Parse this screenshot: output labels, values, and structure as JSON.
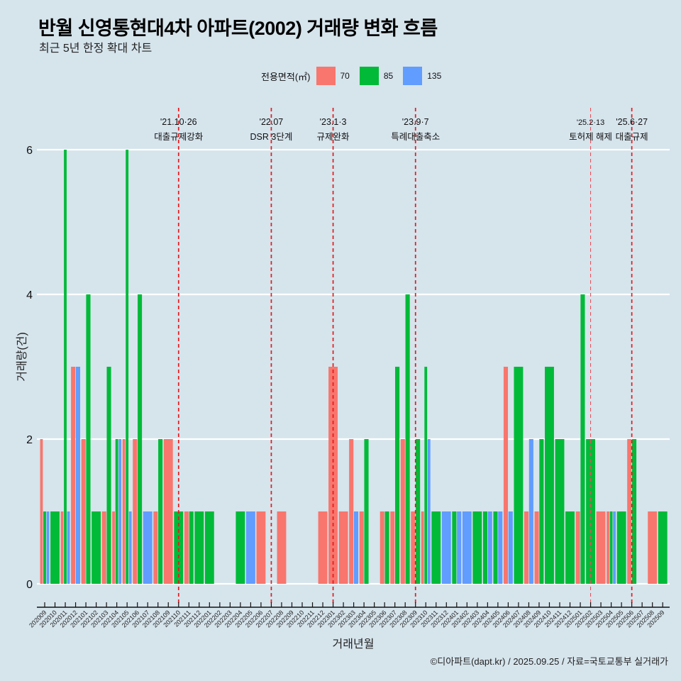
{
  "header": {
    "title": "반월 신영통현대4차 아파트(2002) 거래량 변화 흐름",
    "subtitle": "최근 5년 한정 확대 차트"
  },
  "legend": {
    "title": "전용면적(㎡)",
    "items": [
      {
        "label": "70",
        "color": "#f8766d"
      },
      {
        "label": "85",
        "color": "#00ba38"
      },
      {
        "label": "135",
        "color": "#619cff"
      }
    ]
  },
  "footer": {
    "credit": "©디아파트(dapt.kr) / 2025.09.25 / 자료=국토교통부 실거래가"
  },
  "chart_data": {
    "type": "bar",
    "title": "반월 신영통현대4차 아파트(2002) 거래량 변화 흐름",
    "subtitle": "최근 5년 한정 확대 차트",
    "xlabel": "거래년월",
    "ylabel": "거래량(건)",
    "ylim": [
      0,
      6
    ],
    "yticks": [
      0,
      2,
      4,
      6
    ],
    "grid": true,
    "legend_position": "top",
    "categories": [
      "202009",
      "202010",
      "202011",
      "202012",
      "202101",
      "202102",
      "202103",
      "202104",
      "202105",
      "202106",
      "202107",
      "202108",
      "202109",
      "202110",
      "202111",
      "202112",
      "202201",
      "202202",
      "202203",
      "202204",
      "202205",
      "202206",
      "202207",
      "202208",
      "202209",
      "202210",
      "202211",
      "202212",
      "202301",
      "202302",
      "202303",
      "202304",
      "202305",
      "202306",
      "202307",
      "202308",
      "202309",
      "202310",
      "202311",
      "202312",
      "202401",
      "202402",
      "202403",
      "202404",
      "202405",
      "202406",
      "202407",
      "202408",
      "202409",
      "202410",
      "202411",
      "202412",
      "202501",
      "202502",
      "202503",
      "202504",
      "202505",
      "202506",
      "202507",
      "202508",
      "202509"
    ],
    "series": [
      {
        "name": "70",
        "color": "#f8766d",
        "values": [
          2,
          0,
          1,
          3,
          2,
          0,
          1,
          1,
          2,
          2,
          0,
          1,
          2,
          0,
          1,
          0,
          0,
          0,
          0,
          0,
          0,
          1,
          0,
          1,
          0,
          0,
          0,
          1,
          3,
          1,
          2,
          1,
          0,
          1,
          1,
          2,
          1,
          1,
          0,
          0,
          0,
          0,
          0,
          0,
          0,
          3,
          0,
          1,
          1,
          0,
          0,
          0,
          1,
          0,
          1,
          1,
          0,
          2,
          0,
          1,
          0
        ]
      },
      {
        "name": "85",
        "color": "#00ba38",
        "values": [
          1,
          1,
          6,
          0,
          4,
          1,
          3,
          2,
          6,
          4,
          0,
          2,
          0,
          1,
          1,
          1,
          1,
          0,
          0,
          1,
          0,
          0,
          0,
          0,
          0,
          0,
          0,
          0,
          0,
          0,
          0,
          2,
          0,
          1,
          3,
          4,
          2,
          3,
          1,
          0,
          1,
          0,
          1,
          1,
          1,
          0,
          3,
          0,
          2,
          3,
          2,
          1,
          4,
          2,
          0,
          1,
          1,
          2,
          0,
          0,
          1
        ]
      },
      {
        "name": "135",
        "color": "#619cff",
        "values": [
          1,
          0,
          1,
          3,
          0,
          0,
          0,
          2,
          1,
          0,
          1,
          0,
          0,
          0,
          0,
          0,
          0,
          0,
          0,
          0,
          1,
          0,
          0,
          0,
          0,
          0,
          0,
          0,
          0,
          0,
          1,
          0,
          0,
          0,
          0,
          0,
          0,
          2,
          0,
          1,
          1,
          1,
          0,
          1,
          1,
          1,
          0,
          2,
          0,
          0,
          0,
          0,
          0,
          0,
          0,
          1,
          0,
          0,
          0,
          0,
          0
        ]
      }
    ],
    "annotations": [
      {
        "month": "202110",
        "date": "'21.10·26",
        "label": "대출규제강화",
        "style": "strong"
      },
      {
        "month": "202207",
        "date": "'22.07",
        "label": "DSR 3단계",
        "style": "strong"
      },
      {
        "month": "202301",
        "date": "'23.1·3",
        "label": "규제완화",
        "style": "strong"
      },
      {
        "month": "202309",
        "date": "'23.9·7",
        "label": "특례대출축소",
        "style": "strong"
      },
      {
        "month": "202502",
        "date": "'25.2·13",
        "label": "토허제 해제",
        "style": "light"
      },
      {
        "month": "202506",
        "date": "'25.6·27",
        "label": "대출규제",
        "style": "strong"
      }
    ]
  }
}
